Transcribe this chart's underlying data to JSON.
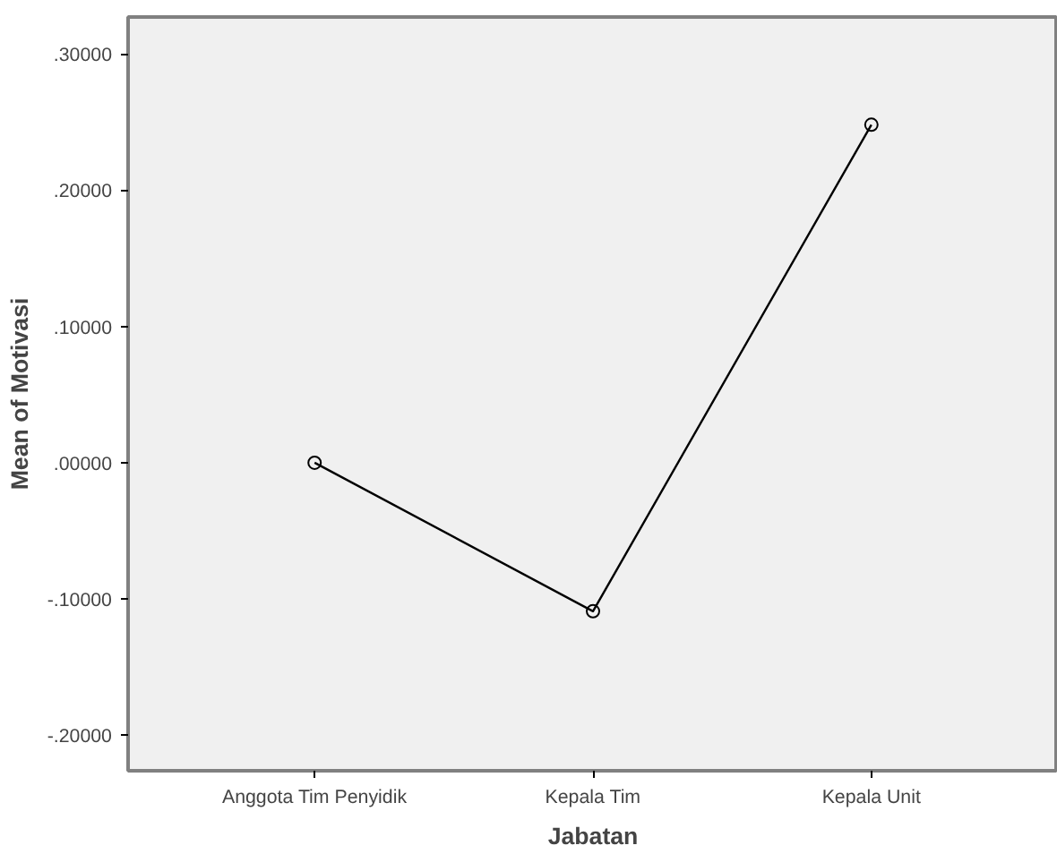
{
  "chart_data": {
    "type": "line",
    "xlabel": "Jabatan",
    "ylabel": "Mean of Motivasi",
    "categories": [
      "Anggota Tim Penyidik",
      "Kepala Tim",
      "Kepala Unit"
    ],
    "series": [
      {
        "color": "#000000",
        "values": [
          0.0,
          -0.109,
          0.248
        ]
      }
    ],
    "ylim": [
      -0.226,
      0.327
    ],
    "yticks": [
      {
        "value": -0.2,
        "label": "-.20000"
      },
      {
        "value": -0.1,
        "label": "-.10000"
      },
      {
        "value": 0.0,
        "label": ".00000"
      },
      {
        "value": 0.1,
        "label": ".10000"
      },
      {
        "value": 0.2,
        "label": ".20000"
      },
      {
        "value": 0.3,
        "label": ".30000"
      }
    ],
    "grid": false,
    "marker": "circle",
    "line_style": "solid"
  }
}
